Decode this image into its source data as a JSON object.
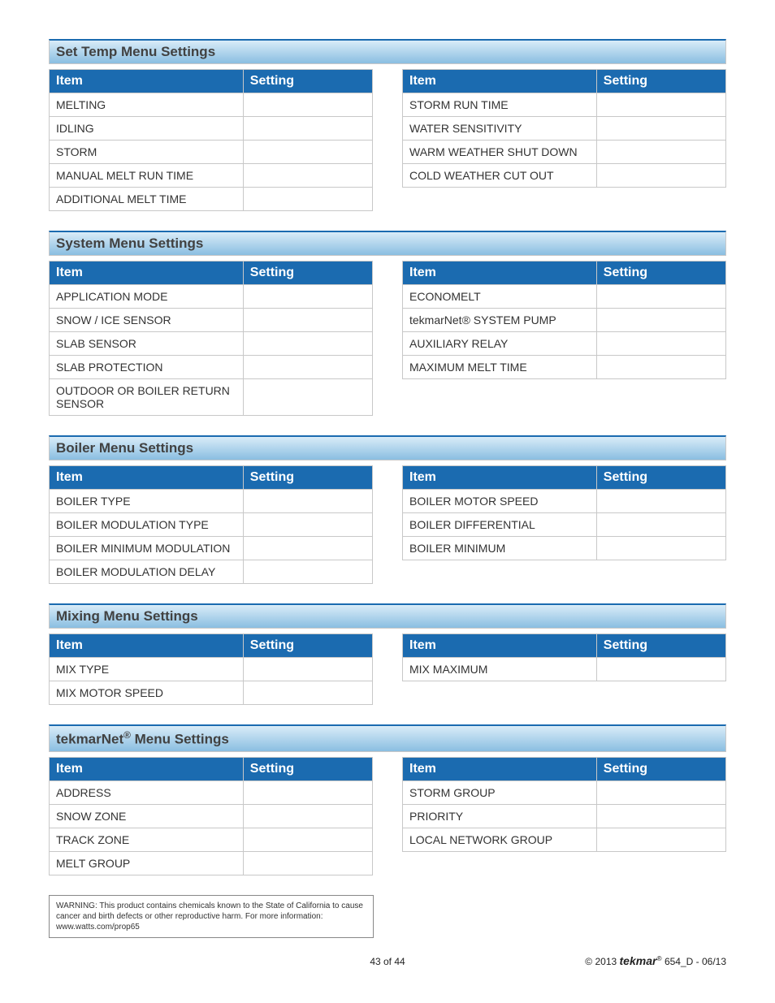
{
  "colors": {
    "header_gradient_start": "#d9ecf8",
    "header_gradient_end": "#8abee1",
    "header_border_top": "#1b6bb0",
    "th_bg": "#1b6bb0",
    "th_color": "#ffffff",
    "cell_border": "#c8c8c8",
    "text": "#333333"
  },
  "column_headers": {
    "item": "Item",
    "setting": "Setting"
  },
  "sections": {
    "setTemp": {
      "title": "Set Temp Menu Settings",
      "left": [
        "MELTING",
        "IDLING",
        "STORM",
        "MANUAL MELT RUN TIME",
        "ADDITIONAL MELT TIME"
      ],
      "right": [
        "STORM RUN TIME",
        "WATER SENSITIVITY",
        "WARM WEATHER SHUT DOWN",
        "COLD WEATHER CUT OUT"
      ]
    },
    "system": {
      "title": "System Menu Settings",
      "left": [
        "APPLICATION MODE",
        "SNOW / ICE SENSOR",
        "SLAB SENSOR",
        "SLAB PROTECTION",
        "OUTDOOR OR BOILER RETURN SENSOR"
      ],
      "right": [
        "ECONOMELT",
        "tekmarNet® SYSTEM PUMP",
        "AUXILIARY RELAY",
        "MAXIMUM MELT TIME"
      ]
    },
    "boiler": {
      "title": "Boiler Menu Settings",
      "left": [
        "BOILER TYPE",
        "BOILER MODULATION TYPE",
        "BOILER MINIMUM MODULATION",
        "BOILER MODULATION DELAY"
      ],
      "right": [
        "BOILER MOTOR SPEED",
        "BOILER DIFFERENTIAL",
        "BOILER MINIMUM"
      ]
    },
    "mixing": {
      "title": "Mixing Menu Settings",
      "left": [
        "MIX TYPE",
        "MIX MOTOR SPEED"
      ],
      "right": [
        "MIX MAXIMUM"
      ]
    },
    "tekmarNet": {
      "title_prefix": "tekmarNet",
      "title_suffix": " Menu Settings",
      "left": [
        "ADDRESS",
        "SNOW ZONE",
        "TRACK ZONE",
        "MELT GROUP"
      ],
      "right": [
        "STORM GROUP",
        "PRIORITY",
        "LOCAL NETWORK GROUP"
      ]
    }
  },
  "warning": "WARNING: This product contains chemicals known to the State of California to cause cancer and birth defects or other reproductive harm.  For more information: www.watts.com/prop65",
  "footer": {
    "page": "43 of 44",
    "copyright": "© 2013 ",
    "brand": "tekmar",
    "doc": " 654_D - 06/13"
  }
}
